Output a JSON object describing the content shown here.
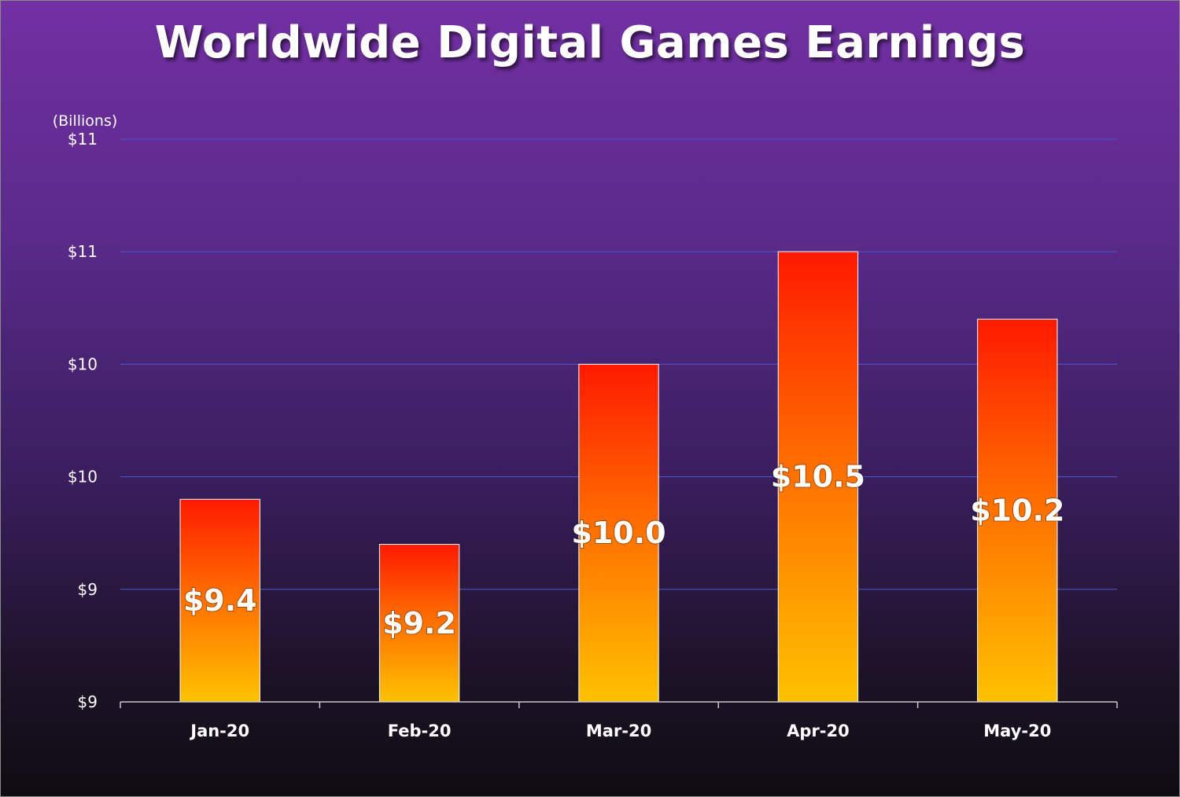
{
  "chart_data": {
    "type": "bar",
    "title": "Worldwide Digital Games Earnings",
    "unit_label": "(Billions)",
    "categories": [
      "Jan-20",
      "Feb-20",
      "Mar-20",
      "Apr-20",
      "May-20"
    ],
    "values": [
      9.4,
      9.2,
      10.0,
      10.5,
      10.2
    ],
    "data_labels": [
      "$9.4",
      "$9.2",
      "$10.0",
      "$10.5",
      "$10.2"
    ],
    "ylim": [
      8.5,
      11.0
    ],
    "yticks": [
      8.5,
      9.0,
      9.5,
      10.0,
      10.5,
      11.0
    ],
    "ytick_labels": [
      "$9",
      "$9",
      "$10",
      "$10",
      "$11",
      "$11"
    ],
    "xlabel": "",
    "ylabel": "",
    "grid": true,
    "colors": {
      "bar_top": "#ff1a00",
      "bar_mid": "#ff6a00",
      "bar_bottom": "#ffc200",
      "bar_stroke": "#ffffff",
      "grid": "#4a5bd4",
      "axis": "#c8c8c8"
    }
  }
}
